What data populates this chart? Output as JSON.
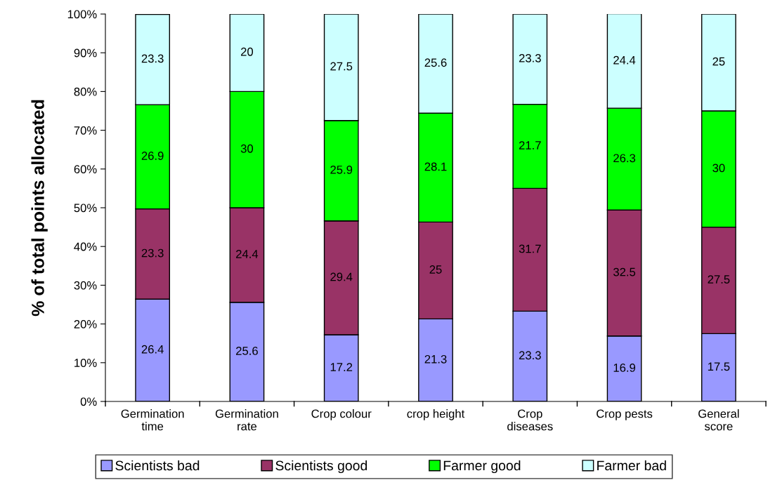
{
  "chart_data": {
    "type": "bar",
    "stacked": true,
    "ylabel": "% of total points allocated",
    "categories": [
      "Germination\ntime",
      "Germination\nrate",
      "Crop colour",
      "crop height",
      "Crop\ndiseases",
      "Crop pests",
      "General\nscore"
    ],
    "series": [
      {
        "name": "Scientists bad",
        "color": "#9999ff",
        "values": [
          26.4,
          25.6,
          17.2,
          21.3,
          23.3,
          16.9,
          17.5
        ]
      },
      {
        "name": "Scientists good",
        "color": "#993366",
        "values": [
          23.3,
          24.4,
          29.4,
          25,
          31.7,
          32.5,
          27.5
        ]
      },
      {
        "name": "Farmer good",
        "color": "#00ff00",
        "values": [
          26.9,
          30,
          25.9,
          28.1,
          21.7,
          26.3,
          30
        ]
      },
      {
        "name": "Farmer bad",
        "color": "#ccffff",
        "values": [
          23.3,
          20,
          27.5,
          25.6,
          23.3,
          24.4,
          25
        ]
      }
    ],
    "ylim": [
      0,
      100
    ],
    "yticks": [
      {
        "value": 0,
        "label": "0%"
      },
      {
        "value": 10,
        "label": "10%"
      },
      {
        "value": 20,
        "label": "20%"
      },
      {
        "value": 30,
        "label": "30%"
      },
      {
        "value": 40,
        "label": "40%"
      },
      {
        "value": 50,
        "label": "50%"
      },
      {
        "value": 60,
        "label": "60%"
      },
      {
        "value": 70,
        "label": "70%"
      },
      {
        "value": 80,
        "label": "80%"
      },
      {
        "value": 90,
        "label": "90%"
      },
      {
        "value": 100,
        "label": "100%"
      }
    ],
    "data_labels": true,
    "legend": "bottom",
    "grid": false
  }
}
